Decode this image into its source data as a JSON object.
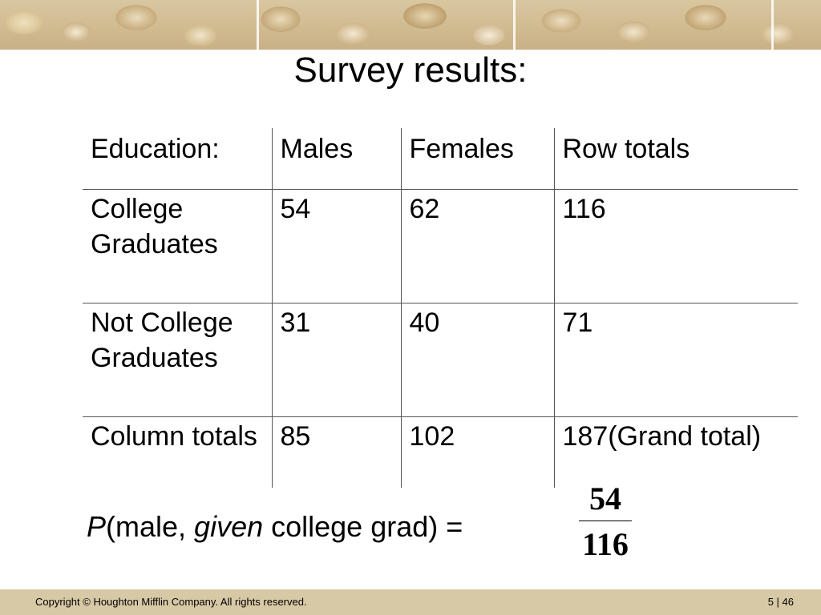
{
  "title": "Survey results:",
  "table": {
    "headers": [
      "Education:",
      "Males",
      "Females",
      "Row totals"
    ],
    "rows": [
      [
        "College Graduates",
        "54",
        "62",
        "116"
      ],
      [
        "Not College Graduates",
        "31",
        "40",
        "71"
      ],
      [
        "Column totals",
        "85",
        "102",
        "187(Grand total)"
      ]
    ]
  },
  "formula": {
    "p": "P",
    "open": "(male, ",
    "given": "given",
    "rest": " college grad) = ",
    "numerator": "54",
    "denominator": "116"
  },
  "footer": {
    "copyright": "Copyright © Houghton Mifflin Company.  All rights reserved.",
    "page": "5 | 46"
  }
}
